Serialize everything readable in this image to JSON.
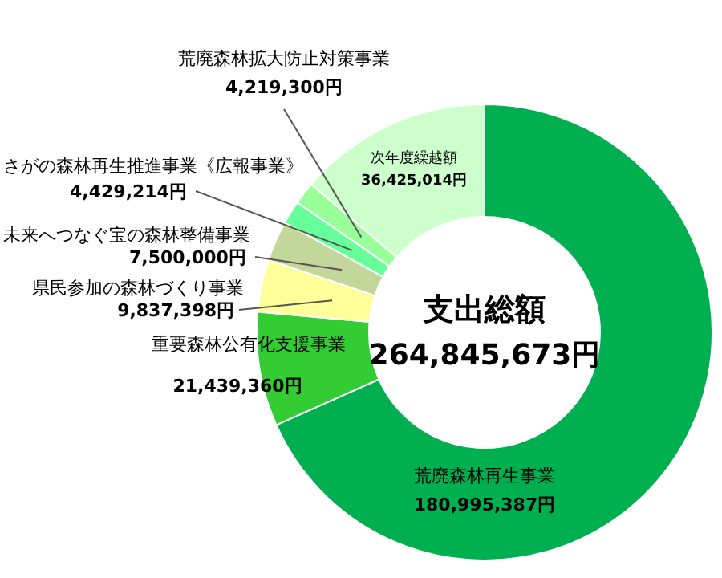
{
  "chart_data": {
    "type": "donut",
    "title": "支出総額",
    "annotations": [
      "264,845,673円"
    ],
    "categories": [
      "荒廃森林再生事業",
      "重要森林公有化支援事業",
      "県民参加の森林づくり事業",
      "未来へつなぐ宝の森林整備事業",
      "さがの森林再生推進事業《広報事業》",
      "荒廃森林拡大防止対策事業",
      "次年度繰越額"
    ],
    "values": [
      180995387,
      21439360,
      9837398,
      7500000,
      4429214,
      4219300,
      36425014
    ],
    "colors": [
      "#00b050",
      "#33cc33",
      "#ffff99",
      "#c4d79b",
      "#66ff99",
      "#99ff99",
      "#ccffcc"
    ],
    "value_labels": [
      "180,995,387円",
      "21,439,360円",
      "9,837,398円",
      "7,500,000円",
      "4,429,214円",
      "4,219,300円",
      "36,425,014円"
    ],
    "data_labels": false
  }
}
